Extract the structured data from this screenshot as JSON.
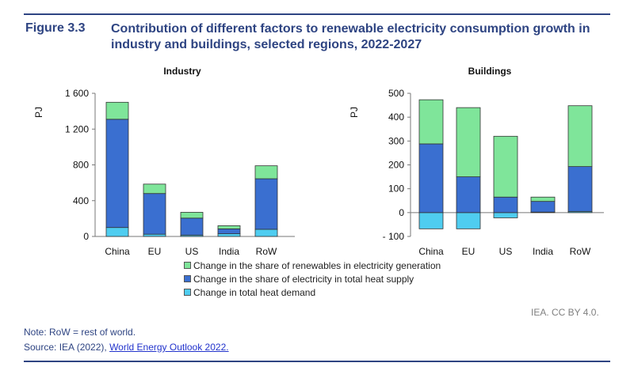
{
  "figure": {
    "number": "Figure 3.3",
    "title": "Contribution of different factors to renewable electricity consumption growth in industry and buildings, selected regions, 2022-2027"
  },
  "credit": "IEA. CC BY 4.0.",
  "notes": {
    "note": "Note: RoW = rest of world.",
    "source_prefix": "Source: IEA (2022), ",
    "source_link": "World Energy Outlook 2022."
  },
  "colors": {
    "renewables_share": "#7fe59a",
    "electricity_share": "#3a6fd0",
    "heat_demand": "#4fcdf0"
  },
  "legend": [
    {
      "key": "renewables_share",
      "label": "Change in the share of renewables in electricity generation"
    },
    {
      "key": "electricity_share",
      "label": "Change in the share of electricity in total heat supply"
    },
    {
      "key": "heat_demand",
      "label": "Change in total heat demand"
    }
  ],
  "chart_data": [
    {
      "type": "bar",
      "stacked": true,
      "title": "Industry",
      "ylabel": "PJ",
      "ylim": [
        0,
        1600
      ],
      "yticks": [
        0,
        400,
        800,
        1200,
        1600
      ],
      "ytick_labels": [
        "0",
        "400",
        "800",
        "1 200",
        "1 600"
      ],
      "categories": [
        "China",
        "EU",
        "US",
        "India",
        "RoW"
      ],
      "series": [
        {
          "key": "heat_demand",
          "name": "Change in total heat demand",
          "values": [
            100,
            25,
            15,
            30,
            80
          ]
        },
        {
          "key": "electricity_share",
          "name": "Change in the share of electricity in total heat supply",
          "values": [
            1210,
            455,
            190,
            55,
            565
          ]
        },
        {
          "key": "renewables_share",
          "name": "Change in the share of renewables in electricity generation",
          "values": [
            190,
            105,
            65,
            35,
            145
          ]
        }
      ]
    },
    {
      "type": "bar",
      "stacked": true,
      "title": "Buildings",
      "ylabel": "PJ",
      "ylim": [
        -100,
        500
      ],
      "yticks": [
        -100,
        0,
        100,
        200,
        300,
        400,
        500
      ],
      "ytick_labels": [
        "- 100",
        "0",
        "100",
        "200",
        "300",
        "400",
        "500"
      ],
      "categories": [
        "China",
        "EU",
        "US",
        "India",
        "RoW"
      ],
      "series": [
        {
          "key": "heat_demand",
          "name": "Change in total heat demand",
          "values": [
            -68,
            -68,
            -22,
            2,
            5
          ]
        },
        {
          "key": "electricity_share",
          "name": "Change in the share of electricity in total heat supply",
          "values": [
            288,
            150,
            65,
            45,
            188
          ]
        },
        {
          "key": "renewables_share",
          "name": "Change in the share of renewables in electricity generation",
          "values": [
            185,
            290,
            255,
            18,
            255
          ]
        }
      ]
    }
  ]
}
